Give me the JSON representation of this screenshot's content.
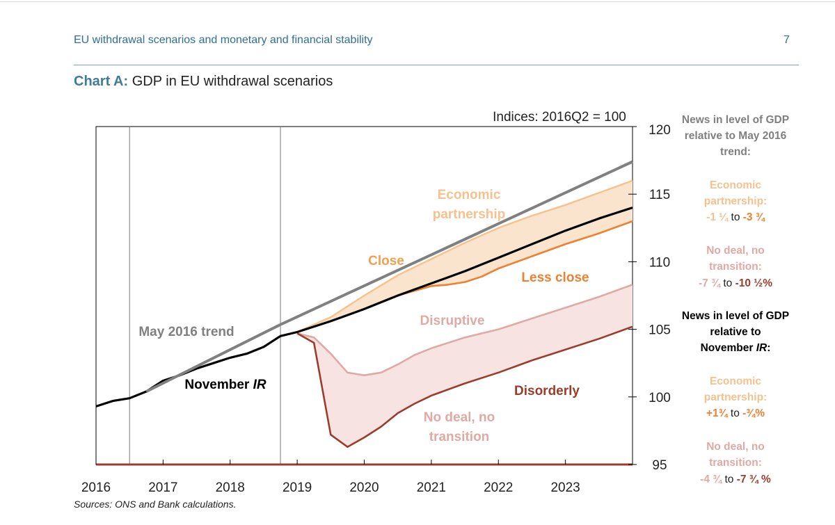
{
  "header": {
    "title": "EU withdrawal scenarios and monetary and financial stability",
    "page_number": "7"
  },
  "chart_title": {
    "label": "Chart A:",
    "text": "GDP in EU withdrawal scenarios"
  },
  "sources": "Sources: ONS and Bank calculations.",
  "colors": {
    "trend": "#808080",
    "november_ir": "#000000",
    "economic_partnership": "#f5c18e",
    "less_close": "#ee8030",
    "close_label": "#f0a050",
    "disruptive": "#e0aaa4",
    "disorderly": "#9c3c2c",
    "fill_orange": "#fbe4cd",
    "fill_pink": "#f7e3e1"
  },
  "chart_data": {
    "type": "line",
    "units_note": "Indices: 2016Q2 = 100",
    "x_tick_labels": [
      "2016",
      "2017",
      "2018",
      "2019",
      "2020",
      "2021",
      "2022",
      "2023"
    ],
    "xlim": [
      2016.0,
      2024.0
    ],
    "ylim": [
      95,
      120
    ],
    "y_ticks": [
      95,
      100,
      105,
      110,
      115,
      120
    ],
    "y_axis_side": "right",
    "vertical_markers": [
      2016.5,
      2018.75
    ],
    "series": [
      {
        "name": "May 2016 trend",
        "key": "trend",
        "points": [
          [
            2018.75,
            105.35
          ],
          [
            2024.0,
            117.4
          ]
        ]
      },
      {
        "name": "November IR",
        "key": "november_ir",
        "points": [
          [
            2016.0,
            99.3
          ],
          [
            2016.25,
            99.7
          ],
          [
            2016.5,
            99.9
          ],
          [
            2016.75,
            100.4
          ],
          [
            2017.0,
            101.2
          ],
          [
            2017.25,
            101.6
          ],
          [
            2017.5,
            102.1
          ],
          [
            2017.75,
            102.5
          ],
          [
            2018.0,
            102.9
          ],
          [
            2018.25,
            103.2
          ],
          [
            2018.5,
            103.7
          ],
          [
            2018.75,
            104.5
          ],
          [
            2019.0,
            104.8
          ],
          [
            2019.5,
            105.6
          ],
          [
            2020.0,
            106.5
          ],
          [
            2020.5,
            107.5
          ],
          [
            2021.0,
            108.4
          ],
          [
            2021.5,
            109.3
          ],
          [
            2022.0,
            110.3
          ],
          [
            2022.5,
            111.3
          ],
          [
            2023.0,
            112.3
          ],
          [
            2023.5,
            113.2
          ],
          [
            2024.0,
            114.0
          ]
        ]
      },
      {
        "name": "Economic partnership",
        "key": "economic_partnership",
        "points": [
          [
            2019.0,
            104.8
          ],
          [
            2019.5,
            105.9
          ],
          [
            2020.0,
            107.5
          ],
          [
            2020.5,
            109.0
          ],
          [
            2021.0,
            110.2
          ],
          [
            2021.5,
            111.4
          ],
          [
            2022.0,
            112.5
          ],
          [
            2022.5,
            113.4
          ],
          [
            2023.0,
            114.2
          ],
          [
            2023.5,
            115.1
          ],
          [
            2024.0,
            116.0
          ]
        ]
      },
      {
        "name": "Less close",
        "key": "less_close",
        "points": [
          [
            2019.0,
            104.8
          ],
          [
            2019.5,
            105.6
          ],
          [
            2020.0,
            106.5
          ],
          [
            2020.5,
            107.5
          ],
          [
            2021.0,
            108.2
          ],
          [
            2021.25,
            108.3
          ],
          [
            2021.5,
            108.5
          ],
          [
            2021.75,
            108.9
          ],
          [
            2022.0,
            109.5
          ],
          [
            2022.5,
            110.4
          ],
          [
            2023.0,
            111.3
          ],
          [
            2023.5,
            112.1
          ],
          [
            2024.0,
            113.0
          ]
        ]
      },
      {
        "name": "Disruptive",
        "key": "disruptive",
        "points": [
          [
            2019.0,
            104.7
          ],
          [
            2019.25,
            104.4
          ],
          [
            2019.5,
            103.2
          ],
          [
            2019.75,
            101.8
          ],
          [
            2020.0,
            101.6
          ],
          [
            2020.25,
            101.8
          ],
          [
            2020.5,
            102.4
          ],
          [
            2020.75,
            103.1
          ],
          [
            2021.0,
            103.6
          ],
          [
            2021.5,
            104.4
          ],
          [
            2022.0,
            105.0
          ],
          [
            2022.5,
            105.8
          ],
          [
            2023.0,
            106.6
          ],
          [
            2023.5,
            107.4
          ],
          [
            2024.0,
            108.3
          ]
        ]
      },
      {
        "name": "Disorderly",
        "key": "disorderly",
        "points": [
          [
            2019.0,
            104.7
          ],
          [
            2019.25,
            104.0
          ],
          [
            2019.5,
            97.2
          ],
          [
            2019.75,
            96.3
          ],
          [
            2020.0,
            97.0
          ],
          [
            2020.25,
            97.8
          ],
          [
            2020.5,
            98.8
          ],
          [
            2020.75,
            99.5
          ],
          [
            2021.0,
            100.1
          ],
          [
            2021.5,
            101.0
          ],
          [
            2022.0,
            101.8
          ],
          [
            2022.5,
            102.7
          ],
          [
            2023.0,
            103.5
          ],
          [
            2023.5,
            104.3
          ],
          [
            2024.0,
            105.2
          ]
        ]
      }
    ],
    "annotations": [
      {
        "text": "May 2016 trend",
        "key": "trend"
      },
      {
        "text": "November ",
        "italic_part": "IR",
        "key": "november_ir"
      },
      {
        "text": "Economic",
        "key": "economic_partnership"
      },
      {
        "text": "partnership",
        "key": "economic_partnership"
      },
      {
        "text": "Close",
        "key": "close_label"
      },
      {
        "text": "Less close",
        "key": "less_close"
      },
      {
        "text": "Disruptive",
        "key": "disruptive"
      },
      {
        "text": "Disorderly",
        "key": "disorderly"
      },
      {
        "text": "No deal, no",
        "key": "disruptive"
      },
      {
        "text": "transition",
        "key": "disruptive"
      }
    ],
    "side_panel": {
      "heading1": [
        "News in level of GDP",
        "relative to May 2016",
        "trend:"
      ],
      "ep1": {
        "lines": [
          "Economic",
          "partnership:"
        ],
        "from": "-1 ¼",
        "mid": " to ",
        "to": "-3 ¾"
      },
      "nd1": {
        "lines": [
          "No deal, no",
          "transition:"
        ],
        "from": "-7 ¾",
        "mid": " to ",
        "to": "-10 ½%"
      },
      "heading2": [
        "News in level of GDP",
        "relative to",
        "November "
      ],
      "heading2_italic": "IR",
      "heading2_end": ":",
      "ep2": {
        "lines": [
          "Economic",
          "partnership:"
        ],
        "from": "+1¾",
        "mid": " to ",
        "to": "-¾%"
      },
      "nd2": {
        "lines": [
          "No deal, no",
          "transition:"
        ],
        "from": "-4 ¾",
        "mid": "  to ",
        "to": "-7 ¾ %"
      }
    }
  }
}
